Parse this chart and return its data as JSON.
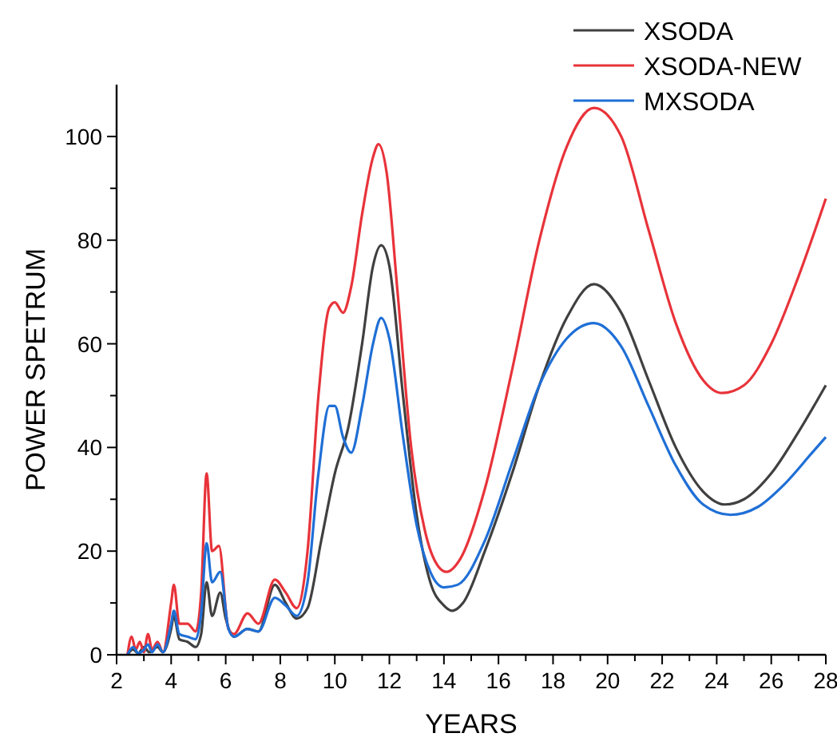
{
  "chart_data": {
    "type": "line",
    "xlabel": "YEARS",
    "ylabel": "POWER SPETRUM",
    "xlim": [
      2,
      28
    ],
    "ylim": [
      0,
      110
    ],
    "xticks": [
      2,
      {
        "value": 3,
        "label": null
      },
      4,
      {
        "value": 5,
        "label": null
      },
      6,
      {
        "value": 7,
        "label": null
      },
      8,
      {
        "value": 9,
        "label": null
      },
      10,
      {
        "value": 11,
        "label": null
      },
      12,
      {
        "value": 13,
        "label": null
      },
      14,
      {
        "value": 15,
        "label": null
      },
      16,
      {
        "value": 17,
        "label": null
      },
      18,
      {
        "value": 19,
        "label": null
      },
      20,
      {
        "value": 21,
        "label": null
      },
      22,
      {
        "value": 23,
        "label": null
      },
      24,
      {
        "value": 25,
        "label": null
      },
      26,
      {
        "value": 27,
        "label": null
      },
      28
    ],
    "yticks": [
      0,
      {
        "value": 10,
        "label": null
      },
      20,
      {
        "value": 30,
        "label": null
      },
      40,
      {
        "value": 50,
        "label": null
      },
      60,
      {
        "value": 70,
        "label": null
      },
      80,
      {
        "value": 90,
        "label": null
      },
      100
    ],
    "grid": false,
    "legend": "top right",
    "marker": "none",
    "line_style": "solid",
    "series": [
      {
        "name": "XSODA",
        "color": "#404040",
        "x": [
          2.4,
          2.6,
          2.8,
          3.0,
          3.2,
          3.5,
          3.7,
          4.0,
          4.1,
          4.3,
          4.6,
          4.9,
          5.1,
          5.3,
          5.5,
          5.8,
          6.0,
          6.3,
          6.8,
          7.2,
          7.8,
          8.2,
          8.6,
          9.0,
          9.5,
          10.0,
          10.5,
          11.0,
          11.4,
          11.7,
          12.0,
          12.5,
          13.0,
          13.5,
          14.0,
          14.3,
          14.7,
          15.5,
          16.5,
          17.5,
          18.5,
          19.5,
          20.5,
          21.5,
          22.5,
          23.5,
          24.3,
          25,
          26,
          27,
          28
        ],
        "values": [
          0,
          1,
          0.3,
          1.5,
          0.5,
          1.5,
          0.5,
          5,
          7.5,
          3,
          2.5,
          1.5,
          4,
          14,
          7.5,
          12,
          7,
          3.5,
          5,
          4.5,
          13.5,
          10,
          7,
          9,
          22,
          35,
          44,
          60,
          75,
          79,
          75,
          50,
          27,
          14,
          9.5,
          8.5,
          10,
          20,
          35,
          52,
          65,
          71.5,
          66,
          53,
          40,
          31.5,
          29,
          30,
          35,
          43,
          52
        ]
      },
      {
        "name": "XSODA-NEW",
        "color": "#e8333a",
        "x": [
          2.4,
          2.55,
          2.7,
          2.85,
          3.0,
          3.15,
          3.3,
          3.5,
          3.7,
          4.0,
          4.1,
          4.3,
          4.6,
          4.9,
          5.1,
          5.3,
          5.5,
          5.75,
          6.1,
          6.3,
          6.8,
          7.2,
          7.8,
          8.2,
          8.6,
          9.0,
          9.4,
          9.8,
          10.0,
          10.3,
          10.6,
          11.0,
          11.4,
          11.6,
          11.9,
          12.3,
          12.8,
          13.3,
          13.8,
          14.1,
          14.6,
          15.5,
          16.5,
          17.5,
          18.5,
          19.5,
          20.5,
          21.5,
          22.5,
          23.5,
          24.2,
          25,
          26,
          27,
          28
        ],
        "values": [
          0,
          3.5,
          1,
          2.5,
          0.5,
          4,
          1,
          2.5,
          0.5,
          10,
          13.5,
          6,
          6,
          4.5,
          12,
          35,
          20,
          21,
          5,
          4,
          8,
          6,
          14.5,
          12,
          9,
          20,
          50,
          67,
          68,
          66,
          71,
          85,
          96,
          98.5,
          93,
          70,
          40,
          24,
          17,
          16,
          18.5,
          32,
          55,
          80,
          98,
          105.5,
          100,
          82,
          64,
          53,
          50.5,
          52,
          60,
          73,
          88
        ]
      },
      {
        "name": "MXSODA",
        "color": "#1f6fd6",
        "x": [
          2.4,
          2.6,
          2.8,
          3.0,
          3.15,
          3.3,
          3.5,
          3.7,
          4.0,
          4.1,
          4.3,
          4.6,
          4.9,
          5.1,
          5.3,
          5.5,
          5.8,
          6.1,
          6.3,
          6.8,
          7.2,
          7.8,
          8.2,
          8.6,
          9.0,
          9.4,
          9.8,
          10.0,
          10.3,
          10.6,
          11.0,
          11.4,
          11.7,
          12.0,
          12.5,
          13.0,
          13.5,
          14.0,
          14.5,
          15.5,
          16.5,
          17.5,
          18.5,
          19.5,
          20.5,
          21.5,
          22.5,
          23.5,
          24.5,
          25.5,
          26.5,
          27.5,
          28
        ],
        "values": [
          0,
          1.5,
          0.3,
          1,
          2,
          0.5,
          2,
          0.5,
          6,
          8.5,
          4,
          3.5,
          3,
          8,
          21.5,
          14,
          16,
          5,
          3.5,
          5,
          4.5,
          11,
          9.5,
          7.5,
          14,
          35,
          48,
          48,
          42,
          39,
          48,
          60,
          65,
          61,
          42,
          25,
          16,
          13,
          13.5,
          22,
          37,
          52,
          61,
          64,
          59.5,
          48,
          36.5,
          29,
          27,
          28.5,
          33,
          39,
          42
        ]
      }
    ]
  }
}
